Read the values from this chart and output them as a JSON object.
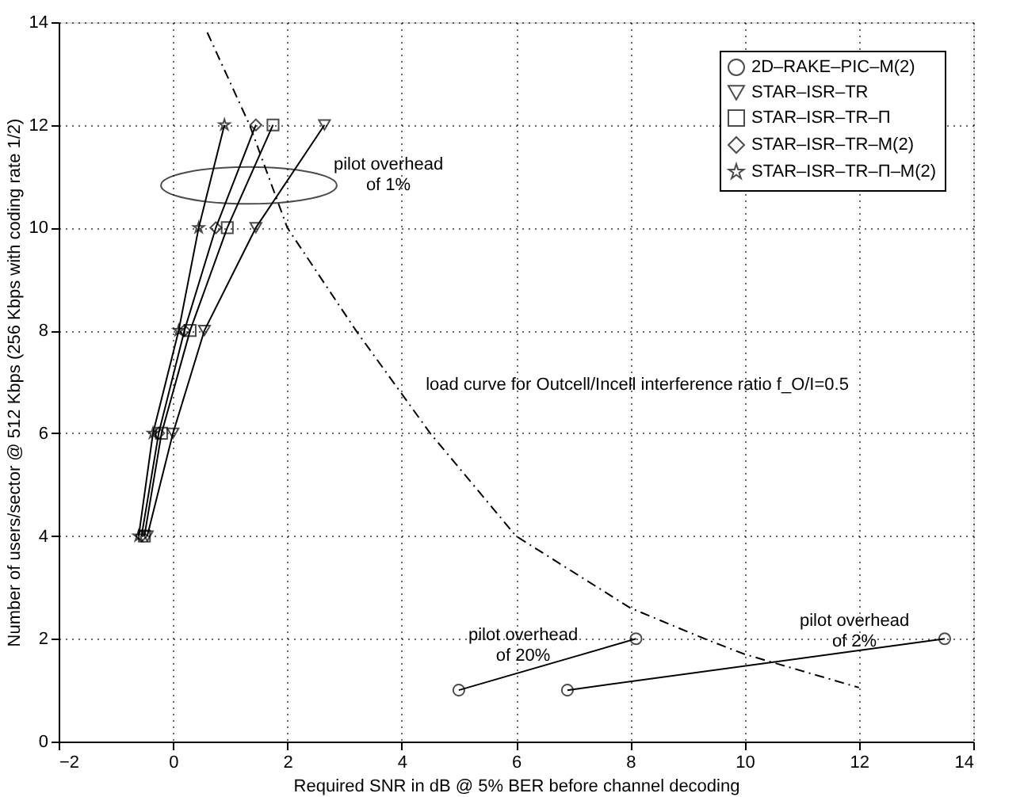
{
  "chart_data": {
    "type": "line",
    "xlabel": "Required SNR in dB @ 5% BER before channel decoding",
    "ylabel": "Number of users/sector @ 512 Kbps (256 Kbps with coding rate 1/2)",
    "xlim": [
      -2,
      14
    ],
    "xticks": [
      -2,
      0,
      2,
      4,
      6,
      8,
      10,
      12,
      14
    ],
    "ylim": [
      0,
      14
    ],
    "yticks": [
      0,
      2,
      4,
      6,
      8,
      10,
      12,
      14
    ],
    "grid": true,
    "legend": "top right",
    "series": [
      {
        "name": "2D–RAKE–PIC–M(2)",
        "color": "#000000",
        "marker": "circle",
        "x": [
          5,
          8.1,
          null,
          6.9,
          13.5
        ],
        "values": [
          1,
          2,
          null,
          1,
          2
        ]
      },
      {
        "name": "STAR–ISR–TR",
        "color": "#000000",
        "marker": "triangle",
        "x": [
          -0.45,
          0,
          0.55,
          1.45,
          2.65
        ],
        "values": [
          4,
          6,
          8,
          10,
          12
        ]
      },
      {
        "name": "STAR–ISR–TR–Π",
        "color": "#000000",
        "marker": "square",
        "x": [
          -0.5,
          -0.2,
          0.3,
          0.95,
          1.75
        ],
        "values": [
          4,
          6,
          8,
          10,
          12
        ]
      },
      {
        "name": "STAR–ISR–TR–M(2)",
        "color": "#000000",
        "marker": "diamond",
        "x": [
          -0.55,
          -0.25,
          0.2,
          0.75,
          1.45
        ],
        "values": [
          4,
          6,
          8,
          10,
          12
        ]
      },
      {
        "name": "STAR–ISR–TR–Π–M(2)",
        "color": "#000000",
        "marker": "star",
        "x": [
          -0.6,
          -0.35,
          0.1,
          0.45,
          0.9
        ],
        "values": [
          4,
          6,
          8,
          10,
          12
        ]
      },
      {
        "color": "#000000",
        "marker": "none",
        "line_style": "dashed",
        "x": [
          0.6,
          1.34,
          2.0,
          3.2,
          4.5,
          6.0,
          8.0,
          9.3,
          10.0,
          12.0
        ],
        "values": [
          13.8,
          12,
          10,
          8,
          6,
          4,
          2.6,
          2,
          1.7,
          1.05
        ]
      }
    ],
    "annotations": [
      "pilot overhead\nof 1%",
      "load curve for Outcell/Incell interference ratio f_O/I=0.5",
      "pilot overhead\nof 20%",
      "pilot overhead\nof 2%"
    ]
  }
}
